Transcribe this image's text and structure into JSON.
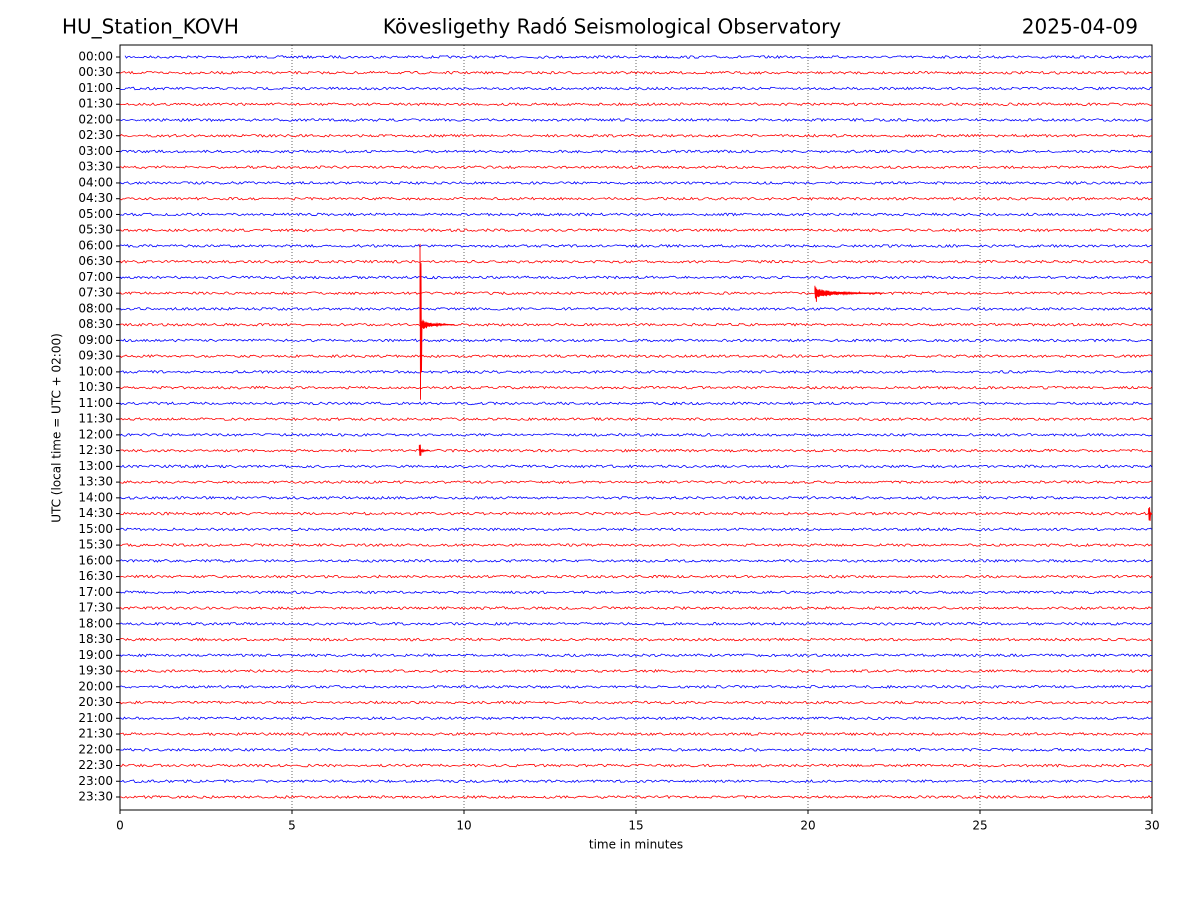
{
  "chart_data": {
    "type": "helicorder",
    "title": "Kövesligethy Radó Seismological Observatory",
    "station": "HU_Station_KOVH",
    "date": "2025-04-09",
    "xlabel": "time in minutes",
    "ylabel": "UTC (local time = UTC + 02:00)",
    "xlim": [
      0,
      30
    ],
    "xticks": [
      0,
      5,
      10,
      15,
      20,
      25,
      30
    ],
    "grid": true,
    "colors": [
      "#0000ff",
      "#ff0000"
    ],
    "categories": [
      "00:00",
      "00:30",
      "01:00",
      "01:30",
      "02:00",
      "02:30",
      "03:00",
      "03:30",
      "04:00",
      "04:30",
      "05:00",
      "05:30",
      "06:00",
      "06:30",
      "07:00",
      "07:30",
      "08:00",
      "08:30",
      "09:00",
      "09:30",
      "10:00",
      "10:30",
      "11:00",
      "11:30",
      "12:00",
      "12:30",
      "13:00",
      "13:30",
      "14:00",
      "14:30",
      "15:00",
      "15:30",
      "16:00",
      "16:30",
      "17:00",
      "17:30",
      "18:00",
      "18:30",
      "19:00",
      "19:30",
      "20:00",
      "20:30",
      "21:00",
      "21:30",
      "22:00",
      "22:30",
      "23:00",
      "23:30"
    ],
    "events": [
      {
        "row": 17,
        "x": 8.72,
        "duration": 1.0,
        "extent": 6
      },
      {
        "row": 15,
        "x": 20.2,
        "duration": 2.0,
        "extent": 0.6
      },
      {
        "row": 25,
        "x": 8.7,
        "duration": 0.3,
        "extent": 0.4
      },
      {
        "row": 29,
        "x": 29.9,
        "duration": 0.1,
        "extent": 0.5
      }
    ]
  }
}
